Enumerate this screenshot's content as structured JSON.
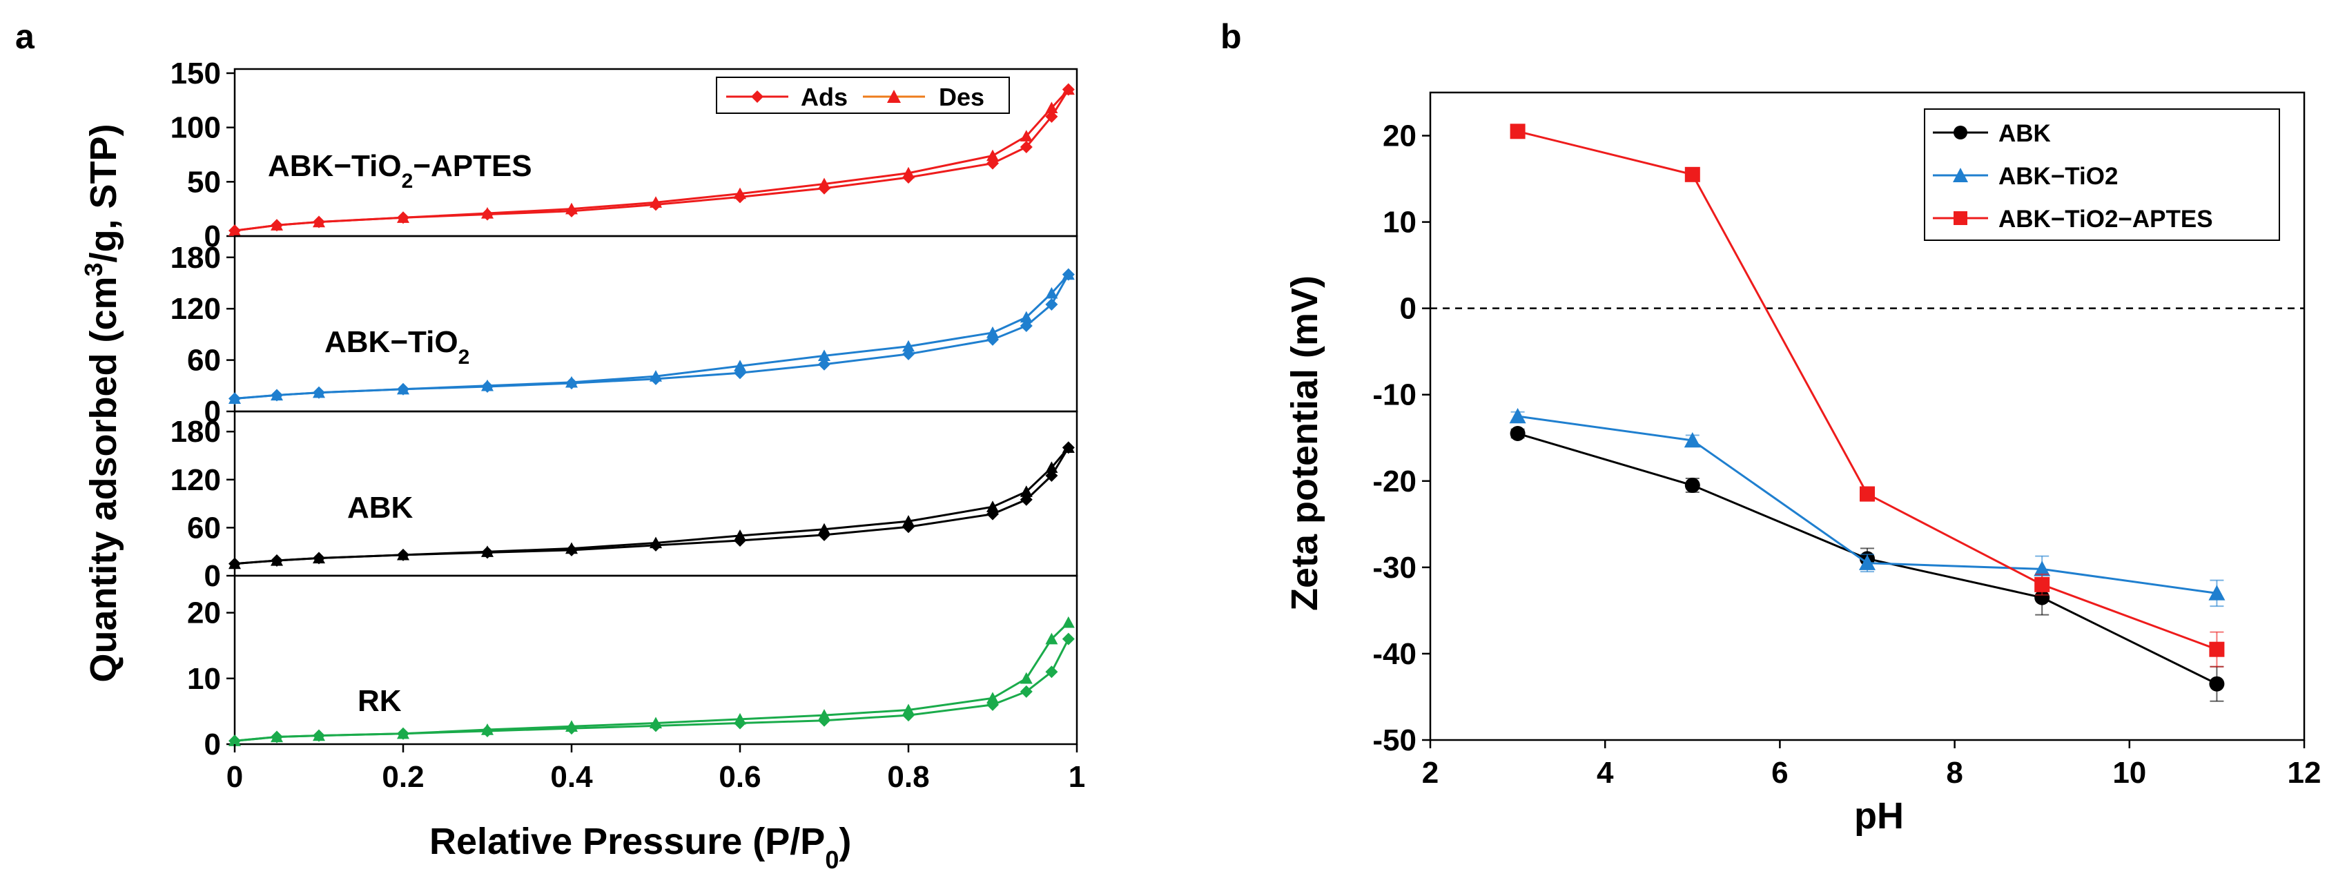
{
  "panel_labels": {
    "a": "a",
    "b": "b"
  },
  "chart_data": [
    {
      "type": "line",
      "title": "",
      "xlabel_main": "Relative Pressure  (P/P",
      "xlabel_sub": "0",
      "xlabel_close": ")",
      "ylabel_part1": "Quantity adsorbed  (cm",
      "ylabel_sup": "3",
      "ylabel_part2": "/g, STP)",
      "xlim": [
        0,
        1
      ],
      "x_ticks": [
        "0",
        "0.2",
        "0.4",
        "0.6",
        "0.8",
        "1"
      ],
      "legend": {
        "position": "top-right",
        "entries": [
          "Ads",
          "Des"
        ]
      },
      "subplots": [
        {
          "sample": "ABK−TiO",
          "sample_sub": "2",
          "sample_suffix": "−APTES",
          "color": "#ee1c1c",
          "ylim": [
            0,
            150
          ],
          "y_ticks": [
            0,
            50,
            100,
            150
          ],
          "x": [
            0.0,
            0.05,
            0.1,
            0.2,
            0.3,
            0.4,
            0.5,
            0.6,
            0.7,
            0.8,
            0.9,
            0.94,
            0.97,
            0.99
          ],
          "ads": [
            5,
            10,
            13,
            17,
            20,
            23,
            29,
            36,
            44,
            54,
            67,
            82,
            110,
            135
          ],
          "des": [
            5,
            10,
            13,
            17,
            21,
            25,
            31,
            39,
            48,
            58,
            74,
            92,
            118,
            135
          ]
        },
        {
          "sample": "ABK−TiO",
          "sample_sub": "2",
          "sample_suffix": "",
          "color": "#1f7fcf",
          "ylim": [
            0,
            200
          ],
          "y_ticks": [
            0,
            60,
            120,
            180
          ],
          "x": [
            0.0,
            0.05,
            0.1,
            0.2,
            0.3,
            0.4,
            0.5,
            0.6,
            0.7,
            0.8,
            0.9,
            0.94,
            0.97,
            0.99
          ],
          "ads": [
            15,
            19,
            22,
            26,
            29,
            33,
            38,
            45,
            55,
            67,
            84,
            100,
            125,
            160
          ],
          "des": [
            15,
            19,
            22,
            26,
            30,
            34,
            41,
            53,
            65,
            76,
            92,
            110,
            138,
            160
          ]
        },
        {
          "sample": "ABK",
          "sample_sub": "",
          "sample_suffix": "",
          "color": "#000000",
          "ylim": [
            0,
            200
          ],
          "y_ticks": [
            0,
            60,
            120,
            180
          ],
          "x": [
            0.0,
            0.05,
            0.1,
            0.2,
            0.3,
            0.4,
            0.5,
            0.6,
            0.7,
            0.8,
            0.9,
            0.94,
            0.97,
            0.99
          ],
          "ads": [
            15,
            19,
            22,
            26,
            29,
            32,
            38,
            44,
            51,
            61,
            77,
            95,
            125,
            160
          ],
          "des": [
            15,
            19,
            22,
            26,
            30,
            34,
            41,
            50,
            58,
            68,
            86,
            105,
            135,
            160
          ]
        },
        {
          "sample": "RK",
          "sample_sub": "",
          "sample_suffix": "",
          "color": "#1aab4b",
          "ylim": [
            0,
            25
          ],
          "y_ticks": [
            0,
            10,
            20
          ],
          "x": [
            0.0,
            0.05,
            0.1,
            0.2,
            0.3,
            0.4,
            0.5,
            0.6,
            0.7,
            0.8,
            0.9,
            0.94,
            0.97,
            0.99
          ],
          "ads": [
            0.5,
            1.1,
            1.3,
            1.6,
            2.0,
            2.4,
            2.8,
            3.2,
            3.6,
            4.4,
            6.0,
            8.0,
            11,
            16
          ],
          "des": [
            0.5,
            1.1,
            1.3,
            1.6,
            2.2,
            2.7,
            3.2,
            3.8,
            4.4,
            5.2,
            7.0,
            10,
            16,
            18.5
          ]
        }
      ]
    },
    {
      "type": "line",
      "title": "",
      "xlabel": "pH",
      "ylabel": "Zeta potential (mV)",
      "xlim": [
        2,
        12
      ],
      "ylim": [
        -50,
        25
      ],
      "x_ticks": [
        2,
        4,
        6,
        8,
        10,
        12
      ],
      "y_ticks": [
        20,
        10,
        0,
        -10,
        -20,
        -30,
        -40,
        -50
      ],
      "reference_line": {
        "y": 0,
        "style": "dashed"
      },
      "legend": {
        "position": "top-right"
      },
      "x": [
        3,
        5,
        7,
        9,
        11
      ],
      "series": [
        {
          "name": "ABK",
          "color": "#000000",
          "marker": "circle",
          "values": [
            -14.5,
            -20.5,
            -29,
            -33.5,
            -43.5
          ],
          "errors": [
            0.5,
            0.8,
            1.2,
            2.0,
            2.0
          ]
        },
        {
          "name": "ABK−TiO2",
          "color": "#1f7fcf",
          "marker": "triangle",
          "values": [
            -12.5,
            -15.3,
            -29.5,
            -30.2,
            -33
          ],
          "errors": [
            0.5,
            0.6,
            1.0,
            1.5,
            1.5
          ]
        },
        {
          "name": "ABK−TiO2−APTES",
          "color": "#ee1c1c",
          "marker": "square",
          "values": [
            20.5,
            15.5,
            -21.5,
            -32,
            -39.5
          ],
          "errors": [
            0.6,
            0.5,
            0.8,
            1.2,
            2.0
          ]
        }
      ]
    }
  ]
}
